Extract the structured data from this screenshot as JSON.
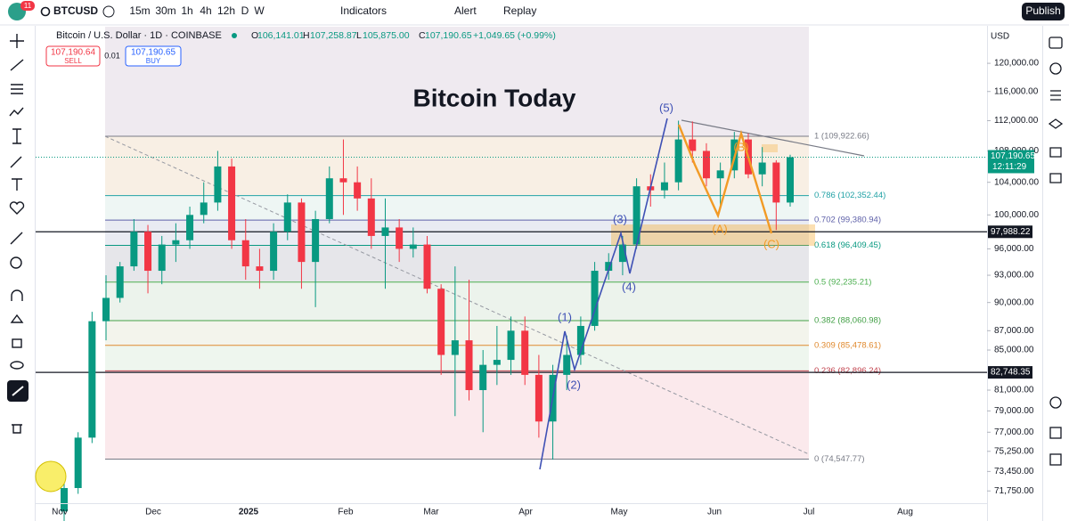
{
  "toolbar": {
    "badge": "11",
    "symbol": "BTCUSD",
    "intervals": [
      "15m",
      "30m",
      "1h",
      "4h",
      "12h",
      "D",
      "W"
    ],
    "indicators": "Indicators",
    "alert": "Alert",
    "replay": "Replay",
    "publish": "Publish"
  },
  "legend": {
    "name": "Bitcoin / U.S. Dollar · 1D · COINBASE",
    "o_label": "O",
    "o": "106,141.01",
    "h_label": "H",
    "h": "107,258.87",
    "l_label": "L",
    "l": "105,875.00",
    "c_label": "C",
    "c": "107,190.65",
    "change": "+1,049.65 (+0.99%)",
    "sell_price": "107,190.64",
    "sell": "SELL",
    "spread": "0.01",
    "buy_price": "107,190.65",
    "buy": "BUY"
  },
  "currency": "USD",
  "chart_data": {
    "type": "candlestick",
    "title": "Bitcoin Today",
    "log_scale": true,
    "up_color": "#089981",
    "down_color": "#f23645",
    "ylim": [
      70700,
      125400
    ],
    "yticks": [
      {
        "value": 120000,
        "label": "120,000.00"
      },
      {
        "value": 116000,
        "label": "116,000.00"
      },
      {
        "value": 112000,
        "label": "112,000.00"
      },
      {
        "value": 108000,
        "label": "108,000.00"
      },
      {
        "value": 104000,
        "label": "104,000.00"
      },
      {
        "value": 100000,
        "label": "100,000.00"
      },
      {
        "value": 96000,
        "label": "96,000.00"
      },
      {
        "value": 93000,
        "label": "93,000.00"
      },
      {
        "value": 90000,
        "label": "90,000.00"
      },
      {
        "value": 87000,
        "label": "87,000.00"
      },
      {
        "value": 85000,
        "label": "85,000.00"
      },
      {
        "value": 81000,
        "label": "81,000.00"
      },
      {
        "value": 79000,
        "label": "79,000.00"
      },
      {
        "value": 77000,
        "label": "77,000.00"
      },
      {
        "value": 75250,
        "label": "75,250.00"
      },
      {
        "value": 73450,
        "label": "73,450.00"
      },
      {
        "value": 71750,
        "label": "71,750.00"
      }
    ],
    "x_labels": [
      "Nov",
      "Dec",
      "2025",
      "Feb",
      "Mar",
      "Apr",
      "May",
      "Jun",
      "Jul",
      "Aug"
    ],
    "candles": [
      [
        70000,
        72500,
        69000,
        72000
      ],
      [
        72000,
        77000,
        71500,
        76500
      ],
      [
        76500,
        89000,
        76000,
        88000
      ],
      [
        88000,
        93000,
        86000,
        90500
      ],
      [
        90500,
        94500,
        90000,
        94000
      ],
      [
        94000,
        99500,
        93500,
        98000
      ],
      [
        98000,
        98800,
        91000,
        93500
      ],
      [
        93500,
        97500,
        92000,
        96500
      ],
      [
        96500,
        99000,
        94500,
        97000
      ],
      [
        97000,
        101000,
        96000,
        100000
      ],
      [
        100000,
        104000,
        99000,
        101500
      ],
      [
        101500,
        108000,
        100500,
        106000
      ],
      [
        106000,
        107000,
        96000,
        97000
      ],
      [
        97000,
        99500,
        92500,
        94000
      ],
      [
        94000,
        96000,
        91500,
        93500
      ],
      [
        93500,
        99000,
        92500,
        98000
      ],
      [
        98000,
        102500,
        97000,
        101500
      ],
      [
        101500,
        102000,
        91500,
        94500
      ],
      [
        94500,
        100500,
        89500,
        99500
      ],
      [
        99500,
        106000,
        99000,
        104500
      ],
      [
        104500,
        109500,
        100000,
        104000
      ],
      [
        104000,
        106000,
        100500,
        102000
      ],
      [
        102000,
        104500,
        96000,
        97500
      ],
      [
        97500,
        102000,
        91500,
        98500
      ],
      [
        98500,
        99500,
        94500,
        96000
      ],
      [
        96000,
        98500,
        95000,
        96500
      ],
      [
        96500,
        97500,
        91000,
        91500
      ],
      [
        91500,
        92000,
        82500,
        84500
      ],
      [
        84500,
        94000,
        78500,
        86000
      ],
      [
        86000,
        92500,
        80000,
        81000
      ],
      [
        81000,
        85000,
        77000,
        83500
      ],
      [
        83500,
        87500,
        81500,
        84000
      ],
      [
        84000,
        88500,
        82500,
        87000
      ],
      [
        87000,
        88500,
        81500,
        82500
      ],
      [
        82500,
        84500,
        76500,
        78000
      ],
      [
        78000,
        83500,
        74500,
        82500
      ],
      [
        82500,
        86500,
        81000,
        84500
      ],
      [
        84500,
        88500,
        83500,
        87500
      ],
      [
        87500,
        94500,
        87000,
        93500
      ],
      [
        93500,
        95500,
        92500,
        94500
      ],
      [
        94500,
        97500,
        93000,
        96500
      ],
      [
        96500,
        104500,
        96000,
        103500
      ],
      [
        103500,
        105000,
        101000,
        103000
      ],
      [
        103000,
        106500,
        102000,
        104000
      ],
      [
        104000,
        112000,
        103000,
        109500
      ],
      [
        109500,
        111900,
        106500,
        108000
      ],
      [
        108000,
        109000,
        103500,
        104500
      ],
      [
        104500,
        106500,
        101000,
        105500
      ],
      [
        105500,
        110500,
        104500,
        109500
      ],
      [
        109500,
        110300,
        104500,
        105000
      ],
      [
        105000,
        108500,
        103500,
        106500
      ],
      [
        106500,
        106800,
        98200,
        101500
      ],
      [
        101500,
        107500,
        101000,
        107190.65
      ]
    ],
    "fib_levels": [
      {
        "value": 109922.66,
        "label": "1 (109,922.66)",
        "color": "#787b86",
        "fill": "#f8efe4"
      },
      {
        "value": 102352.44,
        "label": "0.786 (102,352.44)",
        "color": "#22a2a6",
        "fill": "#eef6f4"
      },
      {
        "value": 99380.94,
        "label": "0.702 (99,380.94)",
        "color": "#5d5fa8",
        "fill": "#e9ebf2"
      },
      {
        "value": 96409.45,
        "label": "0.618 (96,409.45)",
        "color": "#089981",
        "fill": "#e6e6ea"
      },
      {
        "value": 92235.21,
        "label": "0.5 (92,235.21)",
        "color": "#4caf50",
        "fill": "#ecf3ec"
      },
      {
        "value": 88060.98,
        "label": "0.382 (88,060.98)",
        "color": "#43a047",
        "fill": "#f3f4ec"
      },
      {
        "value": 85478.61,
        "label": "0.309 (85,478.61)",
        "color": "#e0892e",
        "fill": "#eef6ee"
      },
      {
        "value": 82896.24,
        "label": "0.236 (82,896.24)",
        "color": "#c2434e",
        "fill": "#fbe9ec"
      },
      {
        "value": 74547.77,
        "label": "0 (74,547.77)",
        "color": "#787b86",
        "fill": "#fbe9ec"
      }
    ],
    "hlines": [
      {
        "value": 97988.22,
        "label": "97,988.22"
      },
      {
        "value": 82748.35,
        "label": "82,748.35"
      }
    ],
    "last_price": {
      "value": 107190.65,
      "label": "107,190.65",
      "countdown": "12:11:29"
    },
    "waves": [
      {
        "label": "(5)",
        "color": "#3f51b5"
      },
      {
        "label": "(3)",
        "color": "#3f51b5"
      },
      {
        "label": "(4)",
        "color": "#3f51b5"
      },
      {
        "label": "(1)",
        "color": "#3f51b5"
      },
      {
        "label": "(2)",
        "color": "#3f51b5"
      },
      {
        "label": "(A)",
        "color": "#f29b26"
      },
      {
        "label": "(B)",
        "color": "#f29b26"
      },
      {
        "label": "(C)",
        "color": "#f29b26"
      }
    ]
  }
}
